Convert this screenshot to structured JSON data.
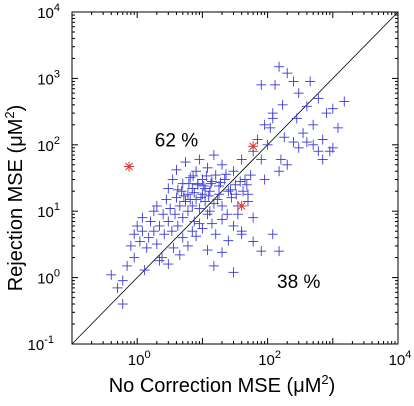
{
  "chart_data": {
    "type": "scatter",
    "xscale": "log",
    "yscale": "log",
    "xlim": [
      0.1,
      10000
    ],
    "ylim": [
      0.1,
      10000
    ],
    "xticks": [
      1,
      100,
      10000
    ],
    "yticks": [
      0.1,
      1,
      10,
      100,
      1000,
      10000
    ],
    "xtick_labels": [
      {
        "base": "10",
        "exp": "0"
      },
      {
        "base": "10",
        "exp": "2"
      },
      {
        "base": "10",
        "exp": "4"
      }
    ],
    "ytick_labels": [
      {
        "base": "10",
        "exp": "-1"
      },
      {
        "base": "10",
        "exp": "0"
      },
      {
        "base": "10",
        "exp": "1"
      },
      {
        "base": "10",
        "exp": "2"
      },
      {
        "base": "10",
        "exp": "3"
      },
      {
        "base": "10",
        "exp": "4"
      }
    ],
    "xlabel": {
      "text": "No Correction MSE (μM",
      "sup": "2",
      "close": ")"
    },
    "ylabel": {
      "text": "Rejection MSE (μM",
      "sup": "2",
      "close": ")"
    },
    "diagonal": {
      "from": [
        0.1,
        0.1
      ],
      "to": [
        10000,
        10000
      ]
    },
    "annotations": [
      {
        "text": "62 %",
        "x": 4.0,
        "y": 95
      },
      {
        "text": "38 %",
        "x": 300,
        "y": 0.7
      }
    ],
    "series": [
      {
        "marker": "+",
        "color": "#3b3bd6",
        "points": [
          [
            0.4,
            1.1
          ],
          [
            0.5,
            0.7
          ],
          [
            0.6,
            0.4
          ],
          [
            0.6,
            0.9
          ],
          [
            0.7,
            1.5
          ],
          [
            0.8,
            3
          ],
          [
            0.9,
            2
          ],
          [
            0.9,
            4.5
          ],
          [
            1.0,
            6
          ],
          [
            1.1,
            3.5
          ],
          [
            1.2,
            5
          ],
          [
            1.2,
            8
          ],
          [
            1.4,
            2.8
          ],
          [
            1.5,
            4
          ],
          [
            1.6,
            7
          ],
          [
            1.8,
            5
          ],
          [
            1.8,
            10
          ],
          [
            2.0,
            3.2
          ],
          [
            2.0,
            12
          ],
          [
            2.2,
            6
          ],
          [
            2.4,
            2
          ],
          [
            2.5,
            9
          ],
          [
            2.6,
            4.5
          ],
          [
            2.8,
            15
          ],
          [
            3.0,
            7
          ],
          [
            3.0,
            22
          ],
          [
            3.2,
            11
          ],
          [
            3.4,
            5
          ],
          [
            3.5,
            30
          ],
          [
            3.8,
            9
          ],
          [
            4.0,
            16
          ],
          [
            4.0,
            42
          ],
          [
            4.2,
            6
          ],
          [
            4.5,
            12
          ],
          [
            4.8,
            20
          ],
          [
            5.0,
            8
          ],
          [
            5.0,
            26
          ],
          [
            5.5,
            14
          ],
          [
            5.5,
            55
          ],
          [
            6.0,
            10
          ],
          [
            6.0,
            18
          ],
          [
            6.5,
            32
          ],
          [
            7.0,
            12
          ],
          [
            7.0,
            22
          ],
          [
            7.5,
            7
          ],
          [
            8.0,
            15
          ],
          [
            8.0,
            40
          ],
          [
            8.5,
            25
          ],
          [
            9.0,
            11
          ],
          [
            9.0,
            60
          ],
          [
            10,
            18
          ],
          [
            10,
            30
          ],
          [
            11,
            14
          ],
          [
            11,
            22
          ],
          [
            12,
            9
          ],
          [
            12,
            45
          ],
          [
            13,
            20
          ],
          [
            14,
            28
          ],
          [
            15,
            13
          ],
          [
            15,
            70
          ],
          [
            16,
            35
          ],
          [
            18,
            18
          ],
          [
            18,
            24
          ],
          [
            20,
            12
          ],
          [
            20,
            50
          ],
          [
            22,
            30
          ],
          [
            24,
            9
          ],
          [
            25,
            20
          ],
          [
            28,
            16
          ],
          [
            30,
            40
          ],
          [
            32,
            25
          ],
          [
            35,
            12
          ],
          [
            40,
            60
          ],
          [
            45,
            30
          ],
          [
            50,
            18
          ],
          [
            3.0,
            1.6
          ],
          [
            4.5,
            2.2
          ],
          [
            6,
            3
          ],
          [
            8,
            4.2
          ],
          [
            10,
            5.5
          ],
          [
            12,
            2.6
          ],
          [
            14,
            6.5
          ],
          [
            16,
            4.5
          ],
          [
            20,
            7.5
          ],
          [
            25,
            3.6
          ],
          [
            30,
            6
          ],
          [
            35,
            9
          ],
          [
            40,
            4.5
          ],
          [
            50,
            14
          ],
          [
            60,
            8
          ],
          [
            15,
            1.5
          ],
          [
            20,
            2.4
          ],
          [
            30,
            1.2
          ],
          [
            60,
            3.5
          ],
          [
            80,
            2.5
          ],
          [
            120,
            4.5
          ],
          [
            150,
            2.5
          ],
          [
            40,
            5
          ],
          [
            1.3,
            1.3
          ],
          [
            2.2,
            1.8
          ],
          [
            3.6,
            2.8
          ],
          [
            5,
            4
          ],
          [
            7,
            5
          ],
          [
            9,
            6.5
          ],
          [
            6.5,
            15
          ],
          [
            7.5,
            19
          ],
          [
            8.5,
            26
          ],
          [
            9.5,
            16
          ],
          [
            10.5,
            24
          ],
          [
            11.5,
            34
          ],
          [
            12.5,
            17
          ],
          [
            13.5,
            26
          ],
          [
            4.2,
            21
          ],
          [
            5.2,
            17
          ],
          [
            6.2,
            26
          ],
          [
            7.2,
            34
          ],
          [
            13,
            10
          ],
          [
            17,
            15
          ],
          [
            19,
            27
          ],
          [
            23,
            36
          ],
          [
            27,
            21
          ],
          [
            33,
            18
          ],
          [
            38,
            28
          ],
          [
            42,
            20
          ],
          [
            48,
            25
          ],
          [
            55,
            35
          ],
          [
            80,
            60
          ],
          [
            100,
            100
          ],
          [
            120,
            300
          ],
          [
            130,
            800
          ],
          [
            150,
            1500
          ],
          [
            170,
            400
          ],
          [
            200,
            1200
          ],
          [
            250,
            900
          ],
          [
            280,
            250
          ],
          [
            300,
            600
          ],
          [
            350,
            150
          ],
          [
            400,
            380
          ],
          [
            450,
            900
          ],
          [
            500,
            200
          ],
          [
            600,
            500
          ],
          [
            700,
            120
          ],
          [
            800,
            300
          ],
          [
            900,
            80
          ],
          [
            1000,
            350
          ],
          [
            1200,
            180
          ],
          [
            1500,
            450
          ],
          [
            300,
            90
          ],
          [
            500,
            100
          ],
          [
            200,
            50
          ],
          [
            150,
            40
          ],
          [
            120,
            250
          ],
          [
            600,
            80
          ],
          [
            1000,
            90
          ],
          [
            700,
            60
          ],
          [
            90,
            30
          ],
          [
            110,
            180
          ],
          [
            180,
            130
          ],
          [
            250,
            110
          ],
          [
            400,
            110
          ],
          [
            160,
            60
          ],
          [
            80,
            800
          ],
          [
            90,
            200
          ],
          [
            70,
            120
          ],
          [
            60,
            80
          ]
        ]
      },
      {
        "marker": "*",
        "color": "#e03030",
        "points": [
          [
            0.75,
            47
          ],
          [
            40,
            12
          ],
          [
            60,
            95
          ]
        ]
      }
    ]
  }
}
